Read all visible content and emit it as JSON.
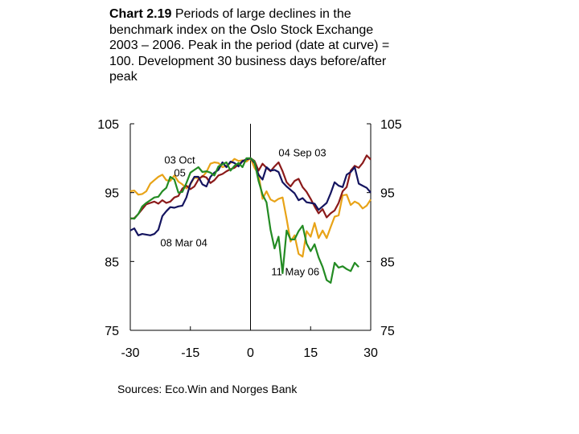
{
  "chart_data": {
    "type": "line",
    "title_bold": "Chart 2.19",
    "title_rest": " Periods of large declines in the benchmark index on the Oslo Stock Exchange 2003 – 2006. Peak in the period (date at curve) = 100. Development 30 business days before/after peak",
    "xlabel": "",
    "ylabel": "",
    "xlim": [
      -30,
      30
    ],
    "ylim": [
      75,
      105
    ],
    "x_ticks": [
      "-30",
      "-15",
      "0",
      "15",
      "30"
    ],
    "y_ticks_left": [
      "105",
      "95",
      "85",
      "75"
    ],
    "y_ticks_right": [
      "105",
      "95",
      "85",
      "75"
    ],
    "grid": false,
    "annotations": [
      "03 Oct 05",
      "04 Sep 03",
      "08 Mar 04",
      "11 May 06"
    ],
    "series": [
      {
        "name": "03 Oct 05",
        "color": "#E8A317",
        "x": [
          -30,
          -29,
          -28,
          -27,
          -26,
          -25,
          -24,
          -23,
          -22,
          -21,
          -20,
          -19,
          -18,
          -17,
          -16,
          -15,
          -14,
          -13,
          -12,
          -11,
          -10,
          -9,
          -8,
          -7,
          -6,
          -5,
          -4,
          -3,
          -2,
          -1,
          0,
          1,
          2,
          3,
          4,
          5,
          6,
          7,
          8,
          9,
          10,
          11,
          12,
          13,
          14,
          15,
          16,
          17,
          18,
          19,
          20,
          21,
          22,
          23,
          24,
          25,
          26,
          27,
          28,
          29,
          30
        ],
        "y": [
          95.2,
          95.3,
          94.7,
          94.8,
          95.2,
          96.3,
          96.8,
          97.3,
          97.6,
          96.8,
          96.7,
          97.5,
          96.6,
          96.2,
          95.6,
          96.2,
          97.2,
          97.1,
          97.3,
          98.0,
          99.2,
          99.4,
          99.3,
          98.7,
          98.9,
          99.3,
          99.9,
          99.6,
          99.7,
          99.5,
          100.0,
          98.6,
          97.7,
          94.1,
          95.2,
          94.0,
          93.7,
          94.1,
          94.3,
          91.2,
          87.9,
          88.8,
          86.1,
          85.7,
          89.4,
          88.6,
          90.6,
          88.4,
          89.5,
          88.4,
          90.0,
          91.5,
          91.7,
          94.6,
          94.7,
          93.2,
          93.7,
          93.4,
          92.7,
          93.1,
          94.0
        ]
      },
      {
        "name": "04 Sep 03",
        "color": "#8B1A1A",
        "x": [
          -30,
          -29,
          -28,
          -27,
          -26,
          -25,
          -24,
          -23,
          -22,
          -21,
          -20,
          -19,
          -18,
          -17,
          -16,
          -15,
          -14,
          -13,
          -12,
          -11,
          -10,
          -9,
          -8,
          -7,
          -6,
          -5,
          -4,
          -3,
          -2,
          -1,
          0,
          1,
          2,
          3,
          4,
          5,
          6,
          7,
          8,
          9,
          10,
          11,
          12,
          13,
          14,
          15,
          16,
          17,
          18,
          19,
          20,
          21,
          22,
          23,
          24,
          25,
          26,
          27,
          28,
          29,
          30
        ],
        "y": [
          91.2,
          91.3,
          91.9,
          92.6,
          93.3,
          93.5,
          93.7,
          93.4,
          93.9,
          93.5,
          93.7,
          94.3,
          94.5,
          95.6,
          96.0,
          95.5,
          95.9,
          96.9,
          97.4,
          97.2,
          96.4,
          96.8,
          97.5,
          97.7,
          98.1,
          98.4,
          98.6,
          99.1,
          99.5,
          99.9,
          100.0,
          99.6,
          98.2,
          99.2,
          98.6,
          98.1,
          98.8,
          99.4,
          98.1,
          96.5,
          95.9,
          96.7,
          97.0,
          95.8,
          95.1,
          94.1,
          93.0,
          92.0,
          92.6,
          91.4,
          92.0,
          92.4,
          93.5,
          95.2,
          95.8,
          98.2,
          98.9,
          98.6,
          99.3,
          100.4,
          99.8
        ]
      },
      {
        "name": "08 Mar 04",
        "color": "#14145F",
        "x": [
          -30,
          -29,
          -28,
          -27,
          -26,
          -25,
          -24,
          -23,
          -22,
          -21,
          -20,
          -19,
          -18,
          -17,
          -16,
          -15,
          -14,
          -13,
          -12,
          -11,
          -10,
          -9,
          -8,
          -7,
          -6,
          -5,
          -4,
          -3,
          -2,
          -1,
          0,
          1,
          2,
          3,
          4,
          5,
          6,
          7,
          8,
          9,
          10,
          11,
          12,
          13,
          14,
          15,
          16,
          17,
          18,
          19,
          20,
          21,
          22,
          23,
          24,
          25,
          26,
          27,
          28,
          29,
          30
        ],
        "y": [
          89.5,
          89.8,
          88.8,
          89.0,
          88.9,
          88.8,
          89.0,
          89.6,
          91.6,
          92.3,
          92.9,
          92.8,
          93.0,
          93.1,
          94.3,
          96.3,
          97.3,
          97.3,
          96.2,
          95.9,
          97.3,
          97.9,
          98.3,
          99.4,
          98.7,
          99.5,
          99.3,
          98.8,
          99.6,
          99.8,
          100.0,
          99.3,
          97.6,
          96.9,
          98.7,
          98.2,
          98.3,
          98.0,
          96.5,
          95.9,
          95.4,
          94.9,
          93.9,
          94.2,
          93.6,
          93.5,
          93.4,
          92.5,
          93.0,
          93.5,
          94.9,
          96.5,
          96.0,
          95.8,
          97.6,
          98.0,
          98.7,
          96.3,
          96.0,
          95.7,
          95.0
        ]
      },
      {
        "name": "11 May 06",
        "color": "#238B23",
        "x": [
          -30,
          -29,
          -28,
          -27,
          -26,
          -25,
          -24,
          -23,
          -22,
          -21,
          -20,
          -19,
          -18,
          -17,
          -16,
          -15,
          -14,
          -13,
          -12,
          -11,
          -10,
          -9,
          -8,
          -7,
          -6,
          -5,
          -4,
          -3,
          -2,
          -1,
          0,
          1,
          2,
          3,
          4,
          5,
          6,
          7,
          8,
          9,
          10,
          11,
          12,
          13,
          14,
          15,
          16,
          17,
          18,
          19,
          20,
          21,
          22,
          23,
          24,
          25,
          26,
          27
        ],
        "y": [
          91.3,
          91.2,
          91.9,
          93.0,
          93.5,
          93.9,
          94.3,
          94.4,
          95.2,
          95.7,
          97.3,
          96.9,
          95.0,
          95.1,
          96.4,
          97.9,
          98.3,
          98.7,
          98.0,
          98.1,
          97.9,
          97.5,
          98.8,
          99.1,
          99.4,
          98.2,
          98.9,
          99.3,
          98.7,
          100.0,
          100.0,
          99.5,
          96.7,
          94.7,
          93.6,
          89.6,
          86.9,
          88.6,
          83.3,
          89.5,
          88.2,
          88.2,
          89.4,
          90.2,
          87.6,
          86.5,
          87.5,
          85.6,
          84.2,
          82.3,
          81.9,
          84.8,
          84.1,
          84.3,
          83.9,
          83.6,
          84.8,
          84.2
        ]
      }
    ]
  },
  "source": "Sources: Eco.Win and Norges Bank"
}
